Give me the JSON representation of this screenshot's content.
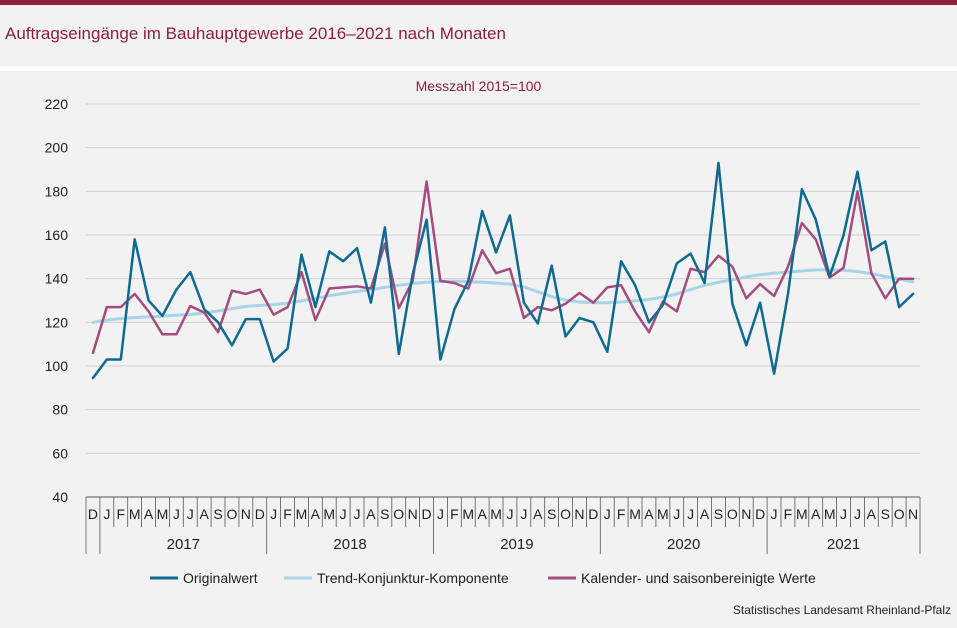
{
  "header": {
    "title": "Auftragseingänge im Bauhauptgewerbe 2016–2021 nach Monaten",
    "unit": "Messzahl 2015=100"
  },
  "footer": {
    "source": "Statistisches Landesamt Rheinland-Pfalz"
  },
  "colors": {
    "brand": "#8e1f3a",
    "original": "#0f6a8f",
    "trend": "#a9d3e6",
    "adjusted": "#a34d7e",
    "grid": "#d0d0d0",
    "axis": "#555555"
  },
  "chart_data": {
    "type": "line",
    "title": "Auftragseingänge im Bauhauptgewerbe 2016–2021 nach Monaten",
    "ylabel": "Messzahl 2015=100",
    "ylim": [
      40,
      220
    ],
    "yticks": [
      40,
      60,
      80,
      100,
      120,
      140,
      160,
      180,
      200,
      220
    ],
    "grid": true,
    "legend_position": "bottom",
    "month_labels": [
      "D",
      "J",
      "F",
      "M",
      "A",
      "M",
      "J",
      "J",
      "A",
      "S",
      "O",
      "N",
      "D",
      "J",
      "F",
      "M",
      "A",
      "M",
      "J",
      "J",
      "A",
      "S",
      "O",
      "N",
      "D",
      "J",
      "F",
      "M",
      "A",
      "M",
      "J",
      "J",
      "A",
      "S",
      "O",
      "N",
      "D",
      "J",
      "F",
      "M",
      "A",
      "M",
      "J",
      "J",
      "A",
      "S",
      "O",
      "N",
      "D",
      "J",
      "F",
      "M",
      "A",
      "M",
      "J",
      "J",
      "A",
      "S",
      "O",
      "N"
    ],
    "year_groups": [
      {
        "label": "2017",
        "start": 1,
        "end": 12
      },
      {
        "label": "2018",
        "start": 13,
        "end": 24
      },
      {
        "label": "2019",
        "start": 25,
        "end": 36
      },
      {
        "label": "2020",
        "start": 37,
        "end": 48
      },
      {
        "label": "2021",
        "start": 49,
        "end": 59
      }
    ],
    "series": [
      {
        "name": "Originalwert",
        "color": "#0f6a8f",
        "values": [
          94.5,
          103,
          103,
          158,
          130,
          123,
          135,
          143,
          126,
          120,
          109.5,
          121.5,
          121.5,
          102,
          108,
          151,
          127,
          152.5,
          148,
          154,
          129,
          163.5,
          105.5,
          142,
          167,
          103,
          126,
          139,
          171,
          152,
          169,
          129,
          119.5,
          146,
          113.5,
          122,
          120,
          106.5,
          148,
          137,
          120,
          128,
          147,
          151.5,
          138,
          193,
          128.5,
          109.5,
          129,
          96.5,
          133,
          181,
          167,
          141,
          160,
          189,
          153,
          157,
          127,
          133
        ]
      },
      {
        "name": "Trend-Konjunktur-Komponente",
        "color": "#a9d3e6",
        "values": [
          120,
          121,
          121.7,
          122.2,
          122.5,
          122.8,
          123.2,
          123.6,
          124.3,
          125.2,
          126.3,
          127.3,
          127.7,
          128.1,
          128.8,
          129.8,
          131,
          132.2,
          133.2,
          134.1,
          135,
          136,
          137,
          137.8,
          138.4,
          138.7,
          138.8,
          138.7,
          138.4,
          138,
          137.5,
          136.2,
          134,
          131.8,
          130.2,
          129.3,
          129,
          129,
          129.3,
          129.8,
          130.5,
          131.5,
          133,
          135,
          137,
          138.3,
          139.5,
          140.8,
          141.8,
          142.5,
          143,
          143.5,
          144,
          144,
          143.8,
          143.3,
          142.3,
          141,
          139.8,
          138.5
        ]
      },
      {
        "name": "Kalender- und saisonbereinigte Werte",
        "color": "#a34d7e",
        "values": [
          106,
          127,
          127,
          133,
          125,
          114.5,
          114.5,
          127.5,
          124.5,
          115.5,
          134.5,
          133,
          135,
          123.5,
          127,
          143,
          121,
          135.5,
          136,
          136.5,
          135.5,
          156,
          126.5,
          139,
          184.5,
          139,
          138,
          135.5,
          153,
          142.5,
          144.5,
          122,
          127,
          125.5,
          128.5,
          133.5,
          129,
          136,
          137,
          125,
          115.5,
          129.5,
          125,
          144.5,
          143,
          150.5,
          145.5,
          131,
          137.5,
          132,
          145.5,
          165.5,
          158,
          140.5,
          145,
          180,
          142.5,
          131,
          140,
          140
        ]
      }
    ]
  }
}
